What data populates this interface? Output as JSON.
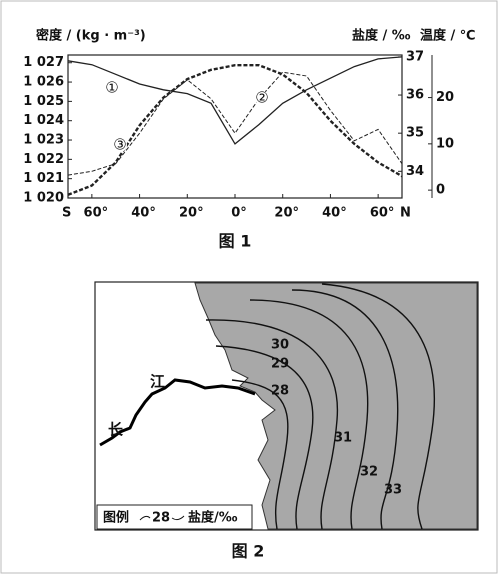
{
  "chart_data": {
    "type": "line",
    "caption": "图 1",
    "ylabel": "密度 / (kg · m⁻³)",
    "y2label": "盐度 / ‰",
    "y3label": "温度 / ℃",
    "x_left_label": "S",
    "x_right_label": "N",
    "x": [
      -70,
      -60,
      -50,
      -40,
      -30,
      -20,
      -10,
      0,
      10,
      20,
      30,
      40,
      50,
      60,
      70
    ],
    "xlim": [
      -70,
      70
    ],
    "xticks": [
      {
        "value": -60,
        "label": "60°"
      },
      {
        "value": -40,
        "label": "40°"
      },
      {
        "value": -20,
        "label": "20°"
      },
      {
        "value": 0,
        "label": "0°"
      },
      {
        "value": 20,
        "label": "20°"
      },
      {
        "value": 40,
        "label": "40°"
      },
      {
        "value": 60,
        "label": "60°"
      }
    ],
    "ylim": [
      1020,
      1027.4
    ],
    "yticks": [
      {
        "value": 1020,
        "label": "1 020"
      },
      {
        "value": 1021,
        "label": "1 021"
      },
      {
        "value": 1022,
        "label": "1 022"
      },
      {
        "value": 1023,
        "label": "1 023"
      },
      {
        "value": 1024,
        "label": "1 024"
      },
      {
        "value": 1025,
        "label": "1 025"
      },
      {
        "value": 1026,
        "label": "1 026"
      },
      {
        "value": 1027,
        "label": "1 027"
      }
    ],
    "y2lim": [
      33.3,
      37.05
    ],
    "y2ticks": [
      34,
      35,
      36,
      37
    ],
    "y3lim": [
      -1.7,
      29.2
    ],
    "y3ticks": [
      0,
      10,
      20
    ],
    "series": [
      {
        "name": "①",
        "axis": "y",
        "color": "#222222",
        "values": [
          1027.1,
          1026.9,
          1026.4,
          1025.9,
          1025.6,
          1025.4,
          1024.9,
          1022.8,
          1023.8,
          1024.9,
          1025.6,
          1026.2,
          1026.8,
          1027.2,
          1027.3
        ]
      },
      {
        "name": "②",
        "axis": "y2",
        "color": "#222222",
        "values": [
          33.9,
          34.0,
          34.2,
          35.0,
          35.9,
          36.4,
          35.9,
          35.0,
          35.9,
          36.6,
          36.5,
          35.6,
          34.8,
          35.1,
          34.2
        ]
      },
      {
        "name": "③",
        "axis": "y3",
        "color": "#222222",
        "values": [
          -1,
          1,
          6,
          14,
          20,
          24,
          26,
          27,
          27,
          25,
          21,
          15,
          10,
          6,
          3
        ]
      }
    ]
  },
  "map": {
    "caption": "图 2",
    "river_label": [
      "长",
      "江"
    ],
    "isoline_labels": [
      "28",
      "29",
      "30",
      "31",
      "32",
      "33"
    ],
    "legend": {
      "title": "图例",
      "sample": "28",
      "unit": "盐度/‰"
    }
  }
}
